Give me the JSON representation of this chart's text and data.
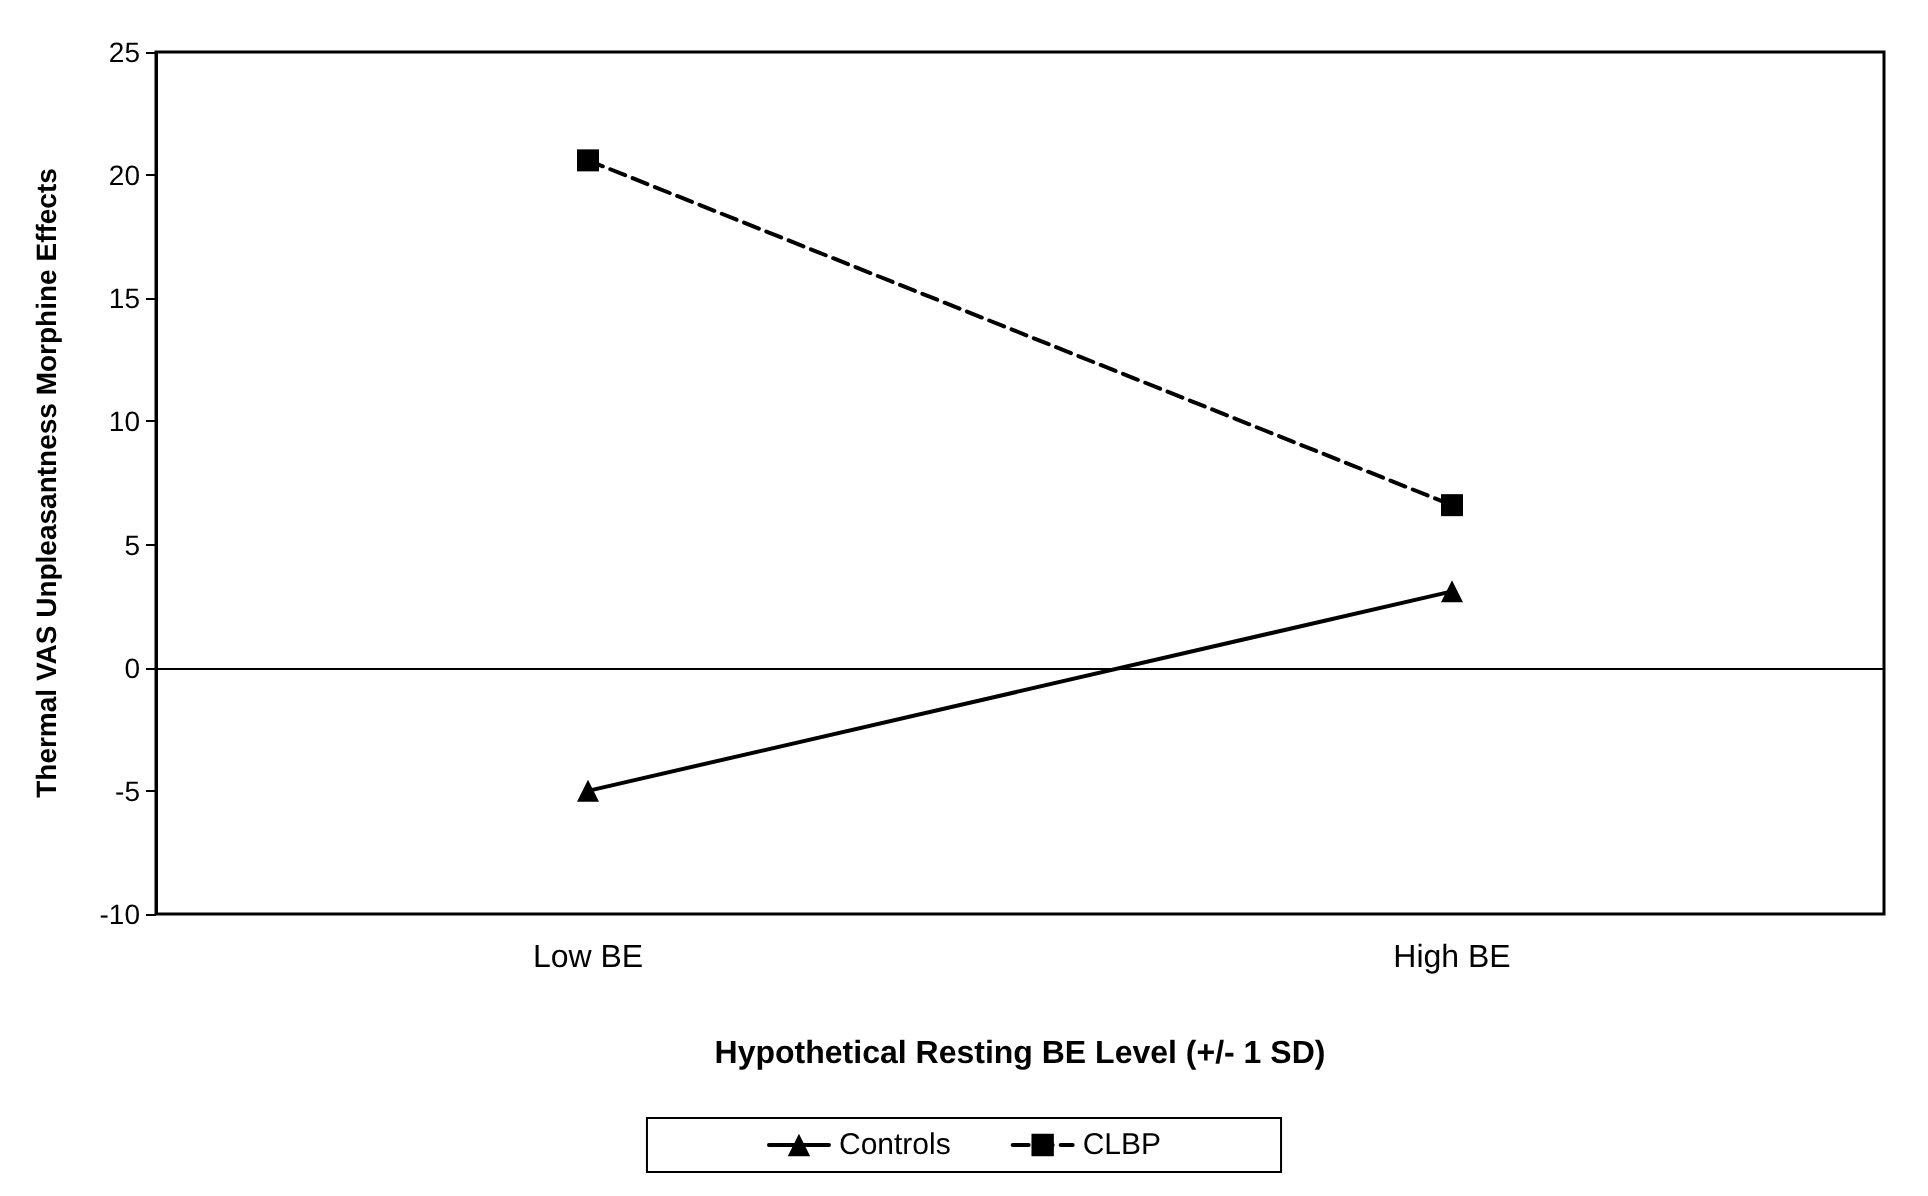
{
  "chart_data": {
    "type": "line",
    "xlabel": "Hypothetical Resting BE Level (+/- 1 SD)",
    "ylabel": "Thermal VAS Unpleasantness Morphine Effects",
    "categories": [
      "Low BE",
      "High BE"
    ],
    "series": [
      {
        "name": "Controls",
        "color": "#000000",
        "values": [
          -5,
          3.1
        ],
        "marker": "triangle",
        "line_style": "solid"
      },
      {
        "name": "CLBP",
        "color": "#000000",
        "values": [
          20.6,
          6.6
        ],
        "marker": "square",
        "line_style": "dashed"
      }
    ],
    "ylim": [
      -10,
      25
    ],
    "yticks": [
      -10,
      -5,
      0,
      5,
      10,
      15,
      20,
      25
    ],
    "grid": false,
    "legend": "bottom",
    "ref_lines": [
      {
        "axis": "y",
        "value": 0,
        "color": "#000000"
      }
    ]
  }
}
